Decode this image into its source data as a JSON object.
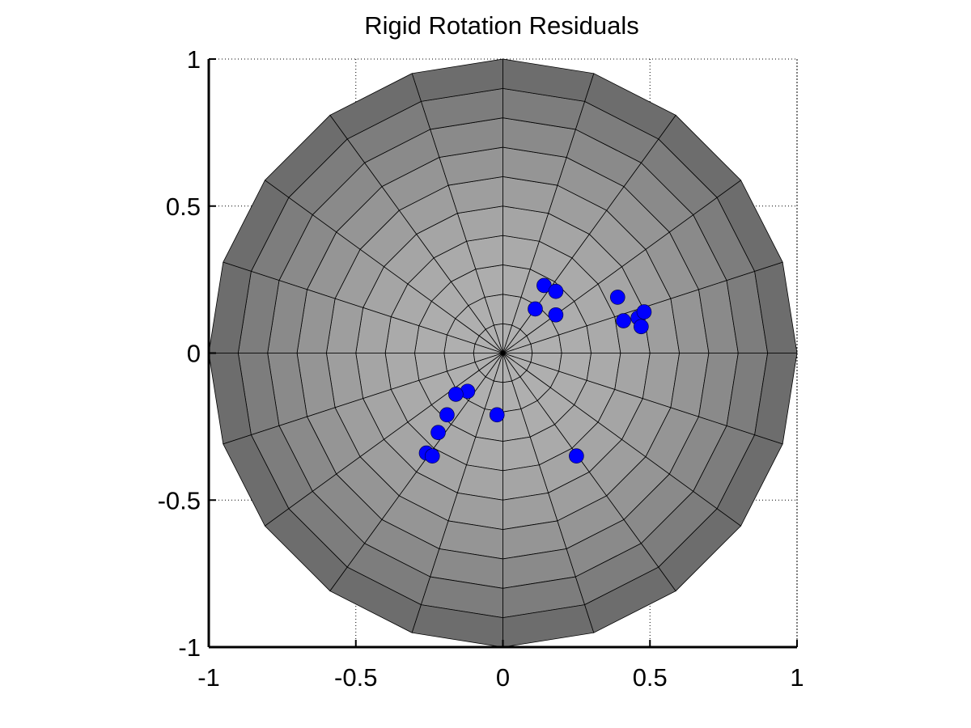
{
  "chart_data": {
    "type": "scatter",
    "title": "Rigid Rotation Residuals",
    "xlabel": "",
    "ylabel": "",
    "xlim": [
      -1,
      1
    ],
    "ylim": [
      -1,
      1
    ],
    "xticks": [
      "-1",
      "-0.5",
      "0",
      "0.5",
      "1"
    ],
    "yticks": [
      "1",
      "0.5",
      "0",
      "-0.5",
      "-1"
    ],
    "grid": true,
    "background": "gray shaded polar surface (unit disk)",
    "series": [
      {
        "marker": "filled circle",
        "color": "#0000ff",
        "points": [
          {
            "x": 0.14,
            "y": 0.23
          },
          {
            "x": 0.18,
            "y": 0.21
          },
          {
            "x": 0.11,
            "y": 0.15
          },
          {
            "x": 0.18,
            "y": 0.13
          },
          {
            "x": 0.39,
            "y": 0.19
          },
          {
            "x": 0.41,
            "y": 0.11
          },
          {
            "x": 0.46,
            "y": 0.12
          },
          {
            "x": 0.48,
            "y": 0.14
          },
          {
            "x": 0.47,
            "y": 0.09
          },
          {
            "x": -0.12,
            "y": -0.13
          },
          {
            "x": -0.16,
            "y": -0.14
          },
          {
            "x": -0.02,
            "y": -0.21
          },
          {
            "x": -0.19,
            "y": -0.21
          },
          {
            "x": -0.22,
            "y": -0.27
          },
          {
            "x": -0.26,
            "y": -0.34
          },
          {
            "x": -0.24,
            "y": -0.35
          },
          {
            "x": 0.25,
            "y": -0.35
          }
        ]
      }
    ]
  },
  "colors": {
    "marker": "#0000ff",
    "surface_inner": "#b0b0b0",
    "surface_outer": "#6a6a6a"
  }
}
